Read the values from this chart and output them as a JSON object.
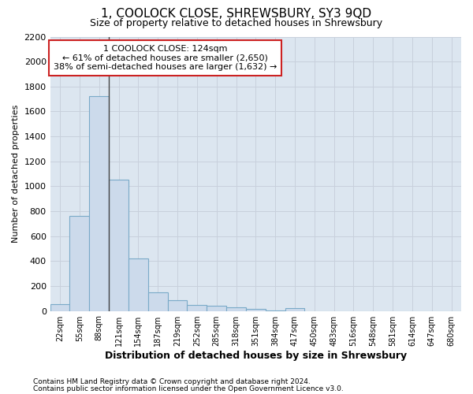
{
  "title": "1, COOLOCK CLOSE, SHREWSBURY, SY3 9QD",
  "subtitle": "Size of property relative to detached houses in Shrewsbury",
  "xlabel": "Distribution of detached houses by size in Shrewsbury",
  "ylabel": "Number of detached properties",
  "footnote1": "Contains HM Land Registry data © Crown copyright and database right 2024.",
  "footnote2": "Contains public sector information licensed under the Open Government Licence v3.0.",
  "annotation_line1": "1 COOLOCK CLOSE: 124sqm",
  "annotation_line2": "← 61% of detached houses are smaller (2,650)",
  "annotation_line3": "38% of semi-detached houses are larger (1,632) →",
  "bar_color": "#ccdaeb",
  "bar_edge_color": "#7aaac8",
  "annotation_box_edge": "#cc2222",
  "grid_color": "#c8d0dc",
  "bg_color": "#dce6f0",
  "categories": [
    "22sqm",
    "55sqm",
    "88sqm",
    "121sqm",
    "154sqm",
    "187sqm",
    "219sqm",
    "252sqm",
    "285sqm",
    "318sqm",
    "351sqm",
    "384sqm",
    "417sqm",
    "450sqm",
    "483sqm",
    "516sqm",
    "548sqm",
    "581sqm",
    "614sqm",
    "647sqm",
    "680sqm"
  ],
  "values": [
    55,
    760,
    1720,
    1050,
    420,
    148,
    85,
    50,
    40,
    28,
    18,
    5,
    22,
    0,
    0,
    0,
    0,
    0,
    0,
    0,
    0
  ],
  "ylim": [
    0,
    2200
  ],
  "yticks": [
    0,
    200,
    400,
    600,
    800,
    1000,
    1200,
    1400,
    1600,
    1800,
    2000,
    2200
  ],
  "vline_bin_index": 3,
  "title_fontsize": 11,
  "subtitle_fontsize": 9,
  "ylabel_fontsize": 8,
  "xlabel_fontsize": 9,
  "tick_fontsize": 7,
  "ytick_fontsize": 8,
  "annot_fontsize": 8,
  "footnote_fontsize": 6.5
}
